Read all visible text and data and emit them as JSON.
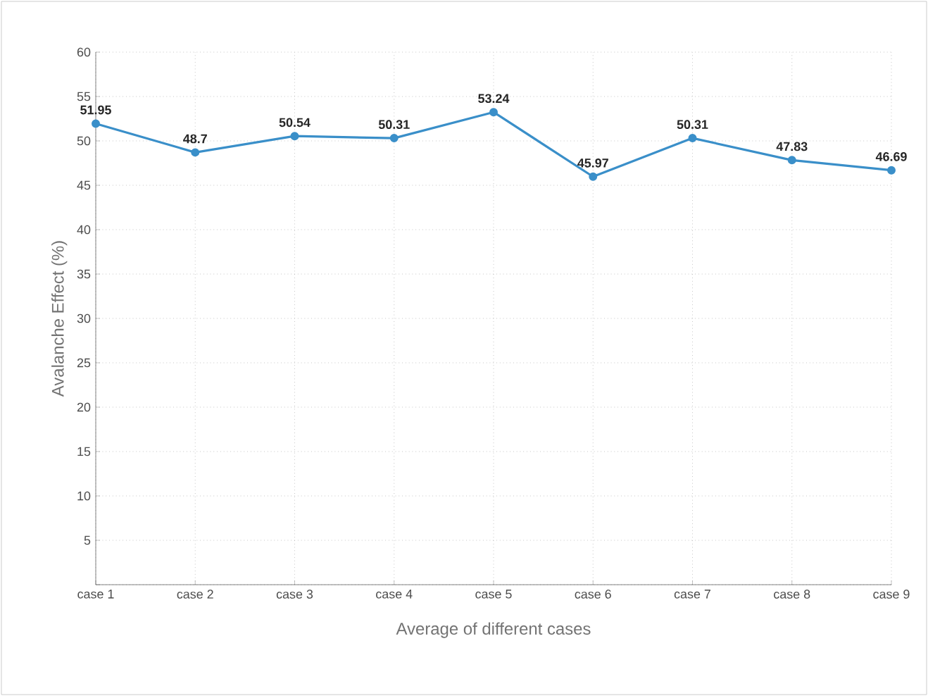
{
  "chart_data": {
    "type": "line",
    "xlabel": "Average of different cases",
    "ylabel": "Avalanche Effect (%)",
    "categories": [
      "case 1",
      "case 2",
      "case 3",
      "case 4",
      "case 5",
      "case 6",
      "case 7",
      "case 8",
      "case 9"
    ],
    "values": [
      51.95,
      48.7,
      50.54,
      50.31,
      53.24,
      45.97,
      50.31,
      47.83,
      46.69
    ],
    "color": "#3a8fc9",
    "ylim": [
      0,
      60
    ],
    "yticks": [
      {
        "value": 0,
        "label": null
      },
      5,
      10,
      15,
      20,
      25,
      30,
      35,
      40,
      45,
      50,
      55,
      60
    ],
    "grid": true,
    "marker": "circle",
    "line_style": "solid",
    "data_labels": true
  }
}
